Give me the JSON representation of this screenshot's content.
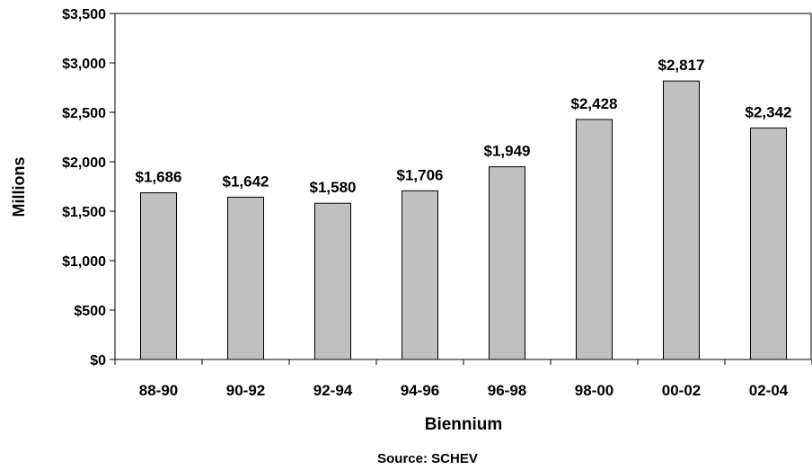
{
  "chart_data": {
    "type": "bar",
    "categories": [
      "88-90",
      "90-92",
      "92-94",
      "94-96",
      "96-98",
      "98-00",
      "00-02",
      "02-04"
    ],
    "values": [
      1686,
      1642,
      1580,
      1706,
      1949,
      2428,
      2817,
      2342
    ],
    "data_labels": [
      "$1,686",
      "$1,642",
      "$1,580",
      "$1,706",
      "$1,949",
      "$2,428",
      "$2,817",
      "$2,342"
    ],
    "y_ticks": [
      0,
      500,
      1000,
      1500,
      2000,
      2500,
      3000,
      3500
    ],
    "y_tick_labels": [
      "$0",
      "$500",
      "$1,000",
      "$1,500",
      "$2,000",
      "$2,500",
      "$3,000",
      "$3,500"
    ],
    "ylim": [
      0,
      3500
    ],
    "xlabel": "Biennium",
    "ylabel": "Millions",
    "source": "Source: SCHEV",
    "grid": false,
    "colors": {
      "bar_fill": "#c0c0c0",
      "bar_stroke": "#000000"
    }
  }
}
